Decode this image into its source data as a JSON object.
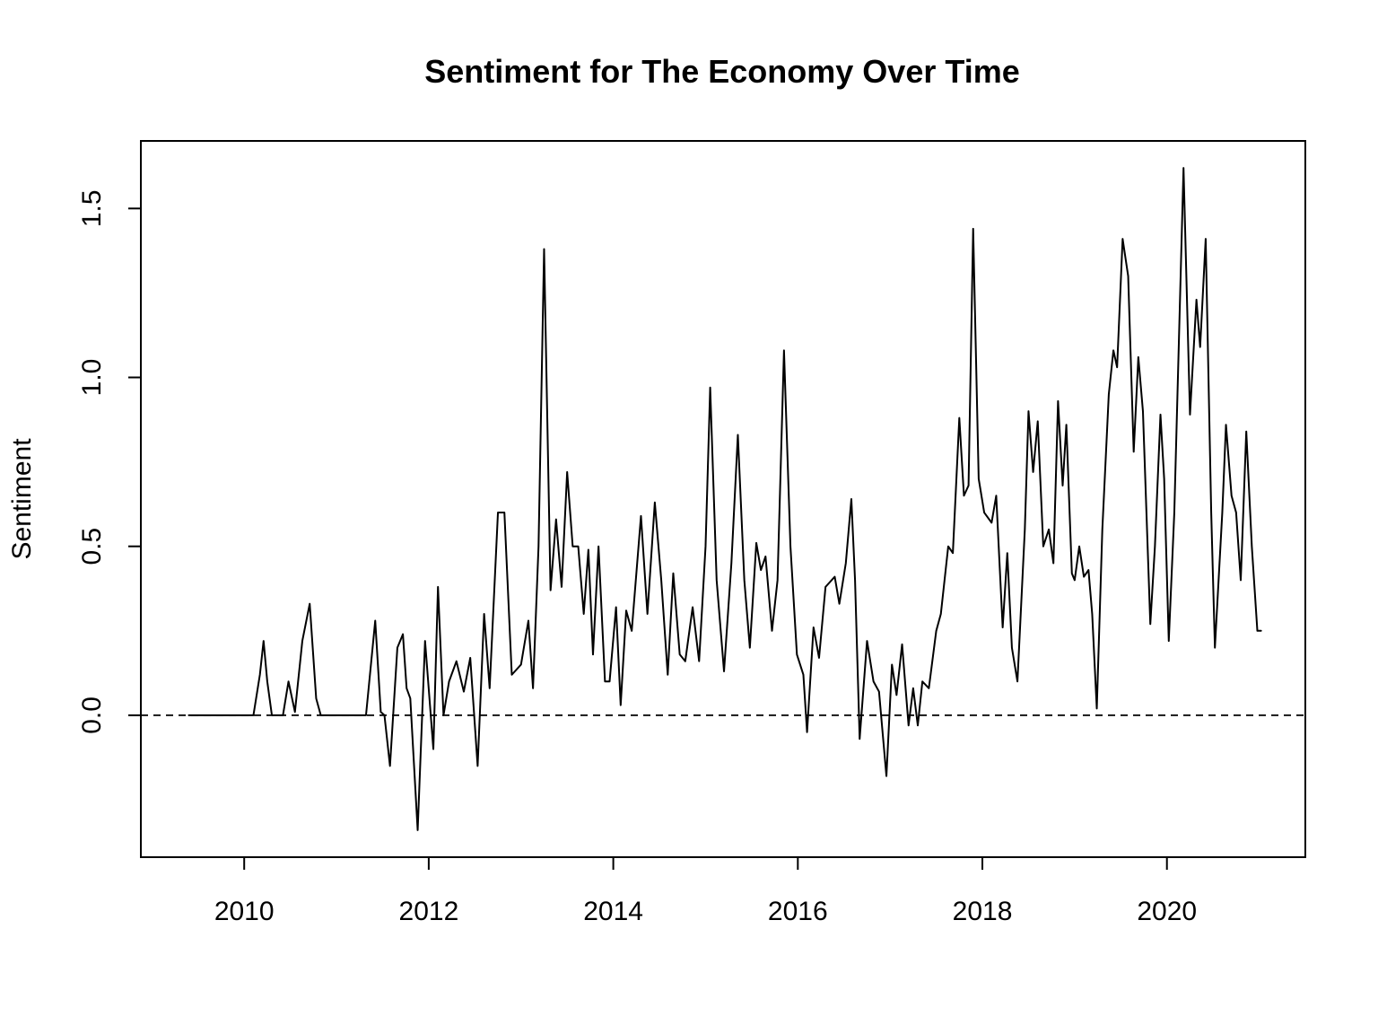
{
  "chart_data": {
    "type": "line",
    "title": "Sentiment for The Economy Over Time",
    "xlabel": "",
    "ylabel": "Sentiment",
    "xlim": [
      2008.88,
      2021.5
    ],
    "ylim": [
      -0.42,
      1.7
    ],
    "x_ticks": [
      2010,
      2012,
      2014,
      2016,
      2018,
      2020
    ],
    "x_tick_labels": [
      "2010",
      "2012",
      "2014",
      "2016",
      "2018",
      "2020"
    ],
    "y_ticks": [
      0.0,
      0.5,
      1.0,
      1.5
    ],
    "y_tick_labels": [
      "0.0",
      "0.5",
      "1.0",
      "1.5"
    ],
    "reference_line": {
      "y": 0.0,
      "style": "dashed"
    },
    "series": [
      {
        "name": "Sentiment",
        "points": [
          [
            2009.4,
            0.0
          ],
          [
            2010.1,
            0.0
          ],
          [
            2010.17,
            0.12
          ],
          [
            2010.21,
            0.22
          ],
          [
            2010.25,
            0.1
          ],
          [
            2010.3,
            0.0
          ],
          [
            2010.42,
            0.0
          ],
          [
            2010.48,
            0.1
          ],
          [
            2010.55,
            0.01
          ],
          [
            2010.63,
            0.22
          ],
          [
            2010.71,
            0.33
          ],
          [
            2010.78,
            0.05
          ],
          [
            2010.83,
            0.0
          ],
          [
            2011.32,
            0.0
          ],
          [
            2011.42,
            0.28
          ],
          [
            2011.48,
            0.01
          ],
          [
            2011.52,
            0.0
          ],
          [
            2011.58,
            -0.15
          ],
          [
            2011.66,
            0.2
          ],
          [
            2011.72,
            0.24
          ],
          [
            2011.76,
            0.08
          ],
          [
            2011.8,
            0.05
          ],
          [
            2011.88,
            -0.34
          ],
          [
            2011.96,
            0.22
          ],
          [
            2012.05,
            -0.1
          ],
          [
            2012.1,
            0.38
          ],
          [
            2012.16,
            0.0
          ],
          [
            2012.22,
            0.1
          ],
          [
            2012.3,
            0.16
          ],
          [
            2012.38,
            0.07
          ],
          [
            2012.45,
            0.17
          ],
          [
            2012.53,
            -0.15
          ],
          [
            2012.6,
            0.3
          ],
          [
            2012.66,
            0.08
          ],
          [
            2012.75,
            0.6
          ],
          [
            2012.82,
            0.6
          ],
          [
            2012.9,
            0.12
          ],
          [
            2013.0,
            0.15
          ],
          [
            2013.08,
            0.28
          ],
          [
            2013.13,
            0.08
          ],
          [
            2013.19,
            0.5
          ],
          [
            2013.25,
            1.38
          ],
          [
            2013.32,
            0.37
          ],
          [
            2013.38,
            0.58
          ],
          [
            2013.44,
            0.38
          ],
          [
            2013.5,
            0.72
          ],
          [
            2013.56,
            0.5
          ],
          [
            2013.62,
            0.5
          ],
          [
            2013.68,
            0.3
          ],
          [
            2013.73,
            0.49
          ],
          [
            2013.78,
            0.18
          ],
          [
            2013.84,
            0.5
          ],
          [
            2013.91,
            0.1
          ],
          [
            2013.96,
            0.1
          ],
          [
            2014.03,
            0.32
          ],
          [
            2014.08,
            0.03
          ],
          [
            2014.14,
            0.31
          ],
          [
            2014.2,
            0.25
          ],
          [
            2014.3,
            0.59
          ],
          [
            2014.37,
            0.3
          ],
          [
            2014.45,
            0.63
          ],
          [
            2014.52,
            0.4
          ],
          [
            2014.59,
            0.12
          ],
          [
            2014.65,
            0.42
          ],
          [
            2014.72,
            0.18
          ],
          [
            2014.78,
            0.16
          ],
          [
            2014.86,
            0.32
          ],
          [
            2014.93,
            0.16
          ],
          [
            2015.0,
            0.5
          ],
          [
            2015.05,
            0.97
          ],
          [
            2015.12,
            0.4
          ],
          [
            2015.2,
            0.13
          ],
          [
            2015.28,
            0.45
          ],
          [
            2015.35,
            0.83
          ],
          [
            2015.42,
            0.4
          ],
          [
            2015.48,
            0.2
          ],
          [
            2015.55,
            0.51
          ],
          [
            2015.6,
            0.43
          ],
          [
            2015.65,
            0.47
          ],
          [
            2015.72,
            0.25
          ],
          [
            2015.78,
            0.4
          ],
          [
            2015.85,
            1.08
          ],
          [
            2015.92,
            0.5
          ],
          [
            2015.99,
            0.18
          ],
          [
            2016.06,
            0.12
          ],
          [
            2016.1,
            -0.05
          ],
          [
            2016.17,
            0.26
          ],
          [
            2016.23,
            0.17
          ],
          [
            2016.3,
            0.38
          ],
          [
            2016.4,
            0.41
          ],
          [
            2016.45,
            0.33
          ],
          [
            2016.52,
            0.45
          ],
          [
            2016.58,
            0.64
          ],
          [
            2016.62,
            0.4
          ],
          [
            2016.67,
            -0.07
          ],
          [
            2016.75,
            0.22
          ],
          [
            2016.82,
            0.1
          ],
          [
            2016.88,
            0.07
          ],
          [
            2016.96,
            -0.18
          ],
          [
            2017.02,
            0.15
          ],
          [
            2017.07,
            0.06
          ],
          [
            2017.13,
            0.21
          ],
          [
            2017.2,
            -0.03
          ],
          [
            2017.25,
            0.08
          ],
          [
            2017.3,
            -0.03
          ],
          [
            2017.35,
            0.1
          ],
          [
            2017.42,
            0.08
          ],
          [
            2017.5,
            0.25
          ],
          [
            2017.55,
            0.3
          ],
          [
            2017.63,
            0.5
          ],
          [
            2017.68,
            0.48
          ],
          [
            2017.75,
            0.88
          ],
          [
            2017.8,
            0.65
          ],
          [
            2017.85,
            0.68
          ],
          [
            2017.9,
            1.44
          ],
          [
            2017.96,
            0.7
          ],
          [
            2018.02,
            0.6
          ],
          [
            2018.1,
            0.57
          ],
          [
            2018.15,
            0.65
          ],
          [
            2018.22,
            0.26
          ],
          [
            2018.27,
            0.48
          ],
          [
            2018.32,
            0.2
          ],
          [
            2018.38,
            0.1
          ],
          [
            2018.46,
            0.55
          ],
          [
            2018.5,
            0.9
          ],
          [
            2018.55,
            0.72
          ],
          [
            2018.6,
            0.87
          ],
          [
            2018.66,
            0.5
          ],
          [
            2018.72,
            0.55
          ],
          [
            2018.77,
            0.45
          ],
          [
            2018.82,
            0.93
          ],
          [
            2018.87,
            0.68
          ],
          [
            2018.91,
            0.86
          ],
          [
            2018.97,
            0.42
          ],
          [
            2019.0,
            0.4
          ],
          [
            2019.05,
            0.5
          ],
          [
            2019.1,
            0.41
          ],
          [
            2019.15,
            0.43
          ],
          [
            2019.19,
            0.3
          ],
          [
            2019.24,
            0.02
          ],
          [
            2019.3,
            0.55
          ],
          [
            2019.37,
            0.95
          ],
          [
            2019.42,
            1.08
          ],
          [
            2019.46,
            1.03
          ],
          [
            2019.52,
            1.41
          ],
          [
            2019.58,
            1.3
          ],
          [
            2019.64,
            0.78
          ],
          [
            2019.69,
            1.06
          ],
          [
            2019.74,
            0.9
          ],
          [
            2019.82,
            0.27
          ],
          [
            2019.87,
            0.5
          ],
          [
            2019.93,
            0.89
          ],
          [
            2019.97,
            0.7
          ],
          [
            2020.02,
            0.22
          ],
          [
            2020.08,
            0.6
          ],
          [
            2020.18,
            1.62
          ],
          [
            2020.25,
            0.89
          ],
          [
            2020.32,
            1.23
          ],
          [
            2020.36,
            1.09
          ],
          [
            2020.42,
            1.41
          ],
          [
            2020.48,
            0.6
          ],
          [
            2020.52,
            0.2
          ],
          [
            2020.6,
            0.6
          ],
          [
            2020.64,
            0.86
          ],
          [
            2020.7,
            0.65
          ],
          [
            2020.75,
            0.6
          ],
          [
            2020.8,
            0.4
          ],
          [
            2020.86,
            0.84
          ],
          [
            2020.92,
            0.5
          ],
          [
            2020.98,
            0.25
          ],
          [
            2021.02,
            0.25
          ]
        ]
      }
    ]
  }
}
